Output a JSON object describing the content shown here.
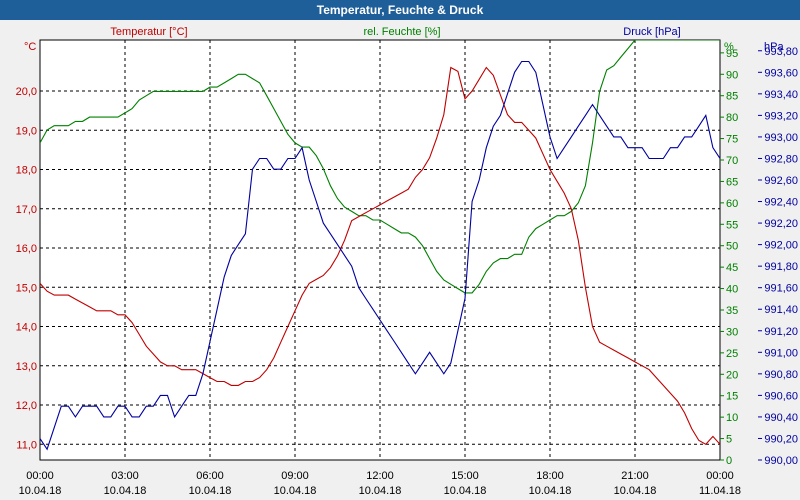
{
  "window": {
    "title": "Temperatur, Feuchte & Druck"
  },
  "colors": {
    "temperature": "#c00000",
    "humidity": "#008000",
    "pressure": "#0000a0",
    "titlebar": "#1f5f99"
  },
  "chart_data": {
    "type": "line",
    "title": "Temperatur, Feuchte & Druck",
    "x_hours": [
      0,
      0.25,
      0.5,
      0.75,
      1,
      1.25,
      1.5,
      1.75,
      2,
      2.25,
      2.5,
      2.75,
      3,
      3.25,
      3.5,
      3.75,
      4,
      4.25,
      4.5,
      4.75,
      5,
      5.25,
      5.5,
      5.75,
      6,
      6.25,
      6.5,
      6.75,
      7,
      7.25,
      7.5,
      7.75,
      8,
      8.25,
      8.5,
      8.75,
      9,
      9.25,
      9.5,
      9.75,
      10,
      10.25,
      10.5,
      10.75,
      11,
      11.25,
      11.5,
      11.75,
      12,
      12.25,
      12.5,
      12.75,
      13,
      13.25,
      13.5,
      13.75,
      14,
      14.25,
      14.5,
      14.75,
      15,
      15.25,
      15.5,
      15.75,
      16,
      16.25,
      16.5,
      16.75,
      17,
      17.25,
      17.5,
      17.75,
      18,
      18.25,
      18.5,
      18.75,
      19,
      19.25,
      19.5,
      19.75,
      20,
      20.25,
      20.5,
      20.75,
      21,
      21.25,
      21.5,
      21.75,
      22,
      22.25,
      22.5,
      22.75,
      23,
      23.25,
      23.5,
      23.75,
      24
    ],
    "x_ticks": [
      {
        "time": "00:00",
        "date": "10.04.18"
      },
      {
        "time": "03:00",
        "date": "10.04.18"
      },
      {
        "time": "06:00",
        "date": "10.04.18"
      },
      {
        "time": "09:00",
        "date": "10.04.18"
      },
      {
        "time": "12:00",
        "date": "10.04.18"
      },
      {
        "time": "15:00",
        "date": "10.04.18"
      },
      {
        "time": "18:00",
        "date": "10.04.18"
      },
      {
        "time": "21:00",
        "date": "10.04.18"
      },
      {
        "time": "00:00",
        "date": "11.04.18"
      }
    ],
    "series": [
      {
        "name": "Temperatur [°C]",
        "axis": "left",
        "unit": "°C",
        "ylim": [
          10.6,
          21.3
        ],
        "values": [
          15.1,
          14.9,
          14.8,
          14.8,
          14.8,
          14.7,
          14.6,
          14.5,
          14.4,
          14.4,
          14.4,
          14.3,
          14.3,
          14.1,
          13.8,
          13.5,
          13.3,
          13.1,
          13.0,
          13.0,
          12.9,
          12.9,
          12.9,
          12.8,
          12.7,
          12.6,
          12.6,
          12.5,
          12.5,
          12.6,
          12.6,
          12.7,
          12.9,
          13.2,
          13.6,
          14.0,
          14.4,
          14.8,
          15.1,
          15.2,
          15.3,
          15.5,
          15.8,
          16.2,
          16.7,
          16.8,
          16.9,
          17.0,
          17.1,
          17.2,
          17.3,
          17.4,
          17.5,
          17.8,
          18.0,
          18.3,
          18.8,
          19.4,
          20.6,
          20.5,
          19.8,
          20.0,
          20.3,
          20.6,
          20.4,
          19.9,
          19.4,
          19.2,
          19.2,
          19.0,
          18.8,
          18.4,
          18.0,
          17.7,
          17.4,
          17.0,
          16.2,
          15.0,
          14.0,
          13.6,
          13.5,
          13.4,
          13.3,
          13.2,
          13.1,
          13.0,
          12.9,
          12.7,
          12.5,
          12.3,
          12.1,
          11.8,
          11.4,
          11.1,
          11.0,
          11.2,
          11.0
        ]
      },
      {
        "name": "rel. Feuchte [%]",
        "axis": "right",
        "unit": "%",
        "ylim": [
          0,
          98
        ],
        "values": [
          74,
          77,
          78,
          78,
          78,
          79,
          79,
          80,
          80,
          80,
          80,
          80,
          81,
          82,
          84,
          85,
          86,
          86,
          86,
          86,
          86,
          86,
          86,
          86,
          87,
          87,
          88,
          89,
          90,
          90,
          89,
          88,
          85,
          82,
          79,
          76,
          74,
          73,
          73,
          71,
          68,
          64,
          61,
          59,
          58,
          57,
          57,
          56,
          56,
          55,
          54,
          53,
          53,
          52,
          50,
          47,
          44,
          42,
          41,
          40,
          39,
          39,
          41,
          44,
          46,
          47,
          47,
          48,
          48,
          52,
          54,
          55,
          56,
          57,
          57,
          58,
          60,
          64,
          74,
          86,
          91,
          92,
          94,
          96,
          98,
          98,
          98,
          98,
          98,
          98,
          98,
          98,
          98,
          98,
          98,
          98,
          98
        ]
      },
      {
        "name": "Druck [hPa]",
        "axis": "right2",
        "unit": "hPa",
        "ylim": [
          990.0,
          993.9
        ],
        "values": [
          990.2,
          990.1,
          990.3,
          990.5,
          990.5,
          990.4,
          990.5,
          990.5,
          990.5,
          990.4,
          990.4,
          990.5,
          990.5,
          990.4,
          990.4,
          990.5,
          990.5,
          990.6,
          990.6,
          990.4,
          990.5,
          990.6,
          990.6,
          990.8,
          991.1,
          991.4,
          991.7,
          991.9,
          992.0,
          992.1,
          992.7,
          992.8,
          992.8,
          992.7,
          992.7,
          992.8,
          992.8,
          992.9,
          992.6,
          992.4,
          992.2,
          992.1,
          992.0,
          991.9,
          991.8,
          991.6,
          991.5,
          991.4,
          991.3,
          991.2,
          991.1,
          991.0,
          990.9,
          990.8,
          990.9,
          991.0,
          990.9,
          990.8,
          990.9,
          991.2,
          991.5,
          992.4,
          992.6,
          992.9,
          993.1,
          993.2,
          993.4,
          993.6,
          993.7,
          993.7,
          993.6,
          993.3,
          993.0,
          992.8,
          992.9,
          993.0,
          993.1,
          993.2,
          993.3,
          993.2,
          993.1,
          993.0,
          993.0,
          992.9,
          992.9,
          992.9,
          992.8,
          992.8,
          992.8,
          992.9,
          992.9,
          993.0,
          993.0,
          993.1,
          993.2,
          992.9,
          992.8
        ]
      }
    ],
    "left_axis": {
      "label": "°C",
      "ticks": [
        "11,0",
        "12,0",
        "13,0",
        "14,0",
        "15,0",
        "16,0",
        "17,0",
        "18,0",
        "19,0",
        "20,0"
      ]
    },
    "right_axis": {
      "label": "%",
      "ticks": [
        "0",
        "5",
        "10",
        "15",
        "20",
        "25",
        "30",
        "35",
        "40",
        "45",
        "50",
        "55",
        "60",
        "65",
        "70",
        "75",
        "80",
        "85",
        "90",
        "95"
      ]
    },
    "right2_axis": {
      "label": "hPa",
      "ticks": [
        "990,00",
        "990,20",
        "990,40",
        "990,60",
        "990,80",
        "991,00",
        "991,20",
        "991,40",
        "991,60",
        "991,80",
        "992,00",
        "992,20",
        "992,40",
        "992,60",
        "992,80",
        "993,00",
        "993,20",
        "993,40",
        "993,60",
        "993,80"
      ]
    },
    "grid": true
  }
}
